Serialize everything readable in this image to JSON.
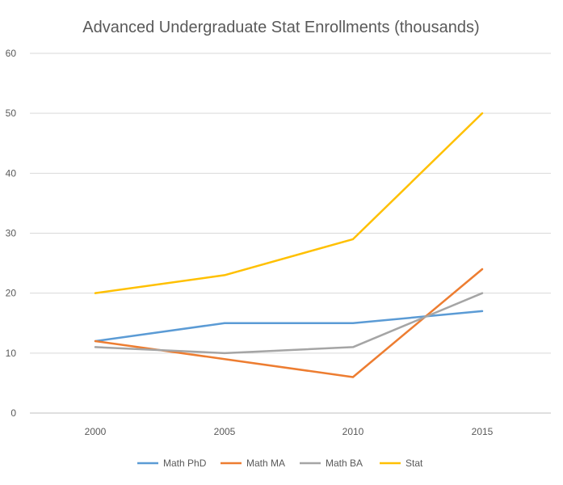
{
  "chart_data": {
    "type": "line",
    "title": "Advanced Undergraduate Stat Enrollments (thousands)",
    "xlabel": "",
    "ylabel": "",
    "categories": [
      "2000",
      "2005",
      "2010",
      "2015"
    ],
    "ylim": [
      0,
      60
    ],
    "yticks": [
      0,
      10,
      20,
      30,
      40,
      50,
      60
    ],
    "grid": true,
    "legend_position": "bottom",
    "series": [
      {
        "name": "Math PhD",
        "color": "#5b9bd5",
        "values": [
          12,
          15,
          15,
          17
        ]
      },
      {
        "name": "Math MA",
        "color": "#ed7d31",
        "values": [
          12,
          9,
          6,
          24
        ]
      },
      {
        "name": "Math BA",
        "color": "#a5a5a5",
        "values": [
          11,
          10,
          11,
          20
        ]
      },
      {
        "name": "Stat",
        "color": "#ffc000",
        "values": [
          20,
          23,
          29,
          50
        ]
      }
    ]
  }
}
